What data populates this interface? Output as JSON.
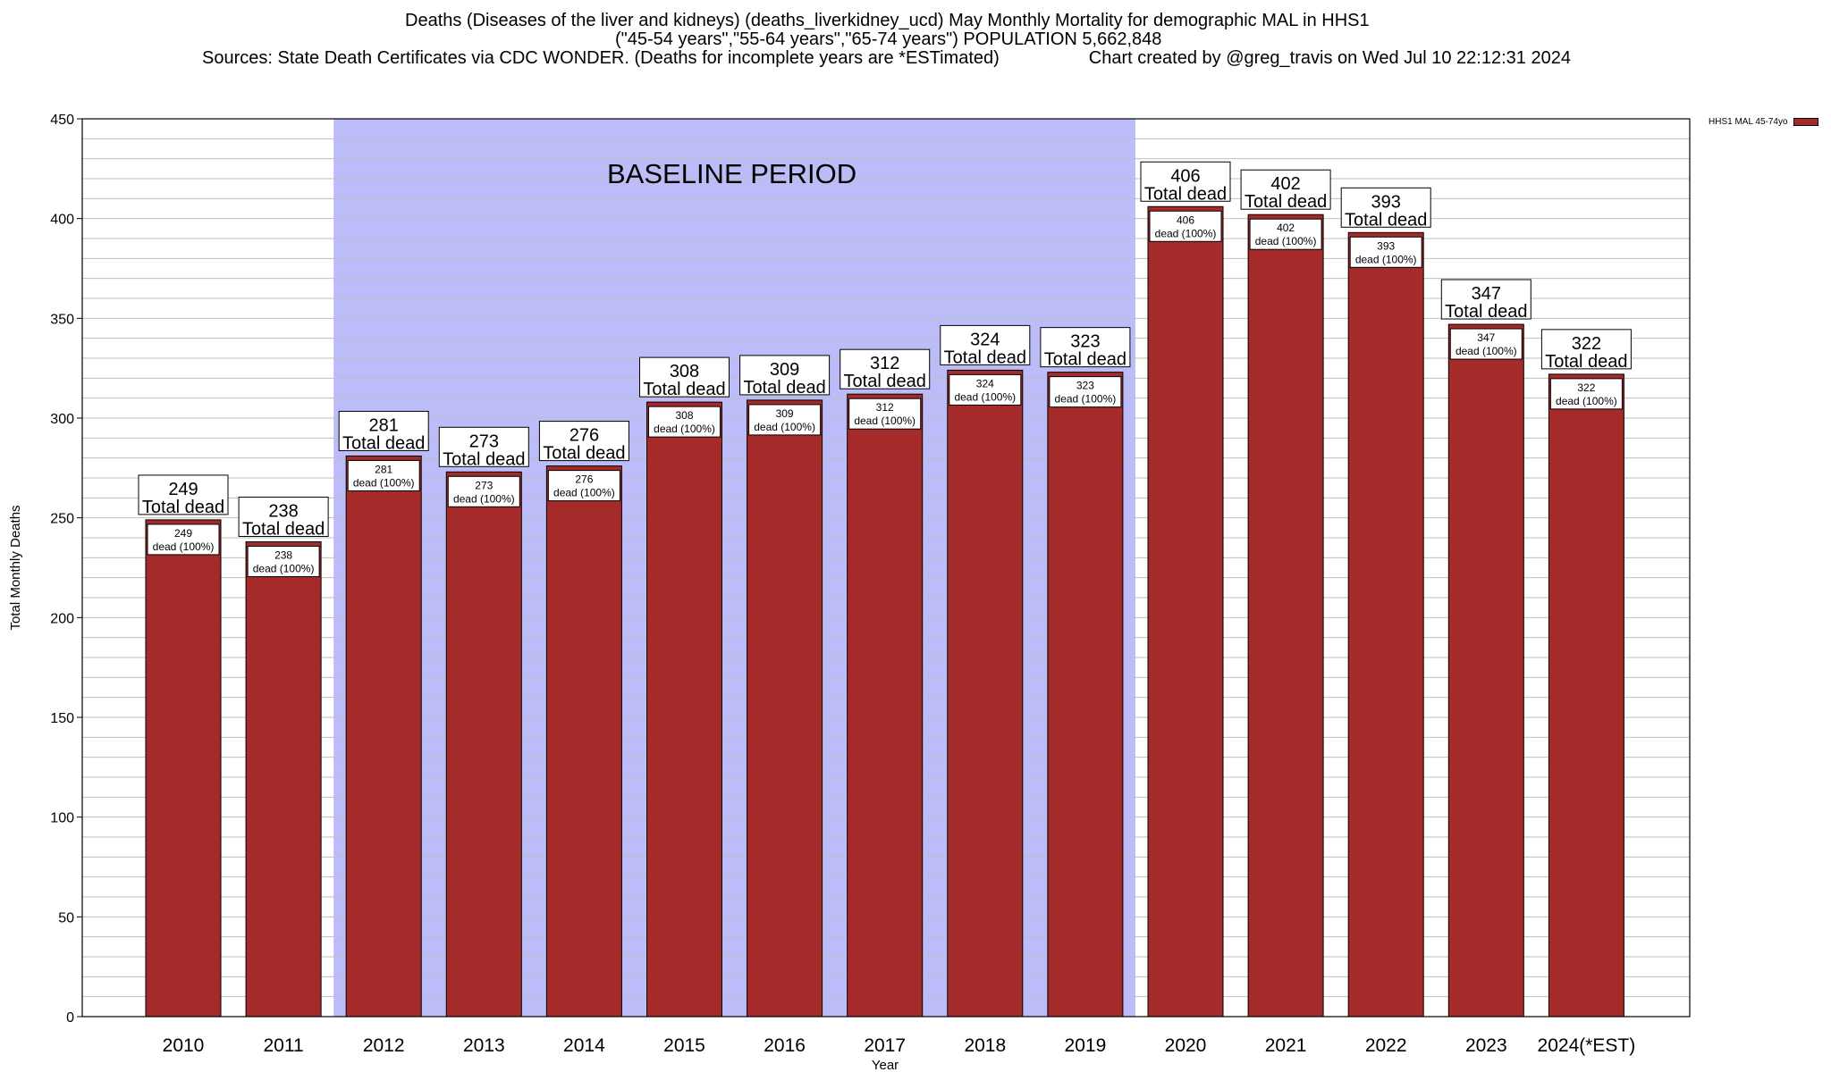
{
  "title": {
    "line1": "Deaths (Diseases of the liver and kidneys) (deaths_liverkidney_ucd) May Monthly Mortality for demographic MAL in HHS1",
    "line2": "(\"45-54 years\",\"55-64 years\",\"65-74 years\") POPULATION 5,662,848",
    "line3": "Sources: State Death Certificates via CDC WONDER. (Deaths for incomplete years are *ESTimated)                  Chart created by @greg_travis on Wed Jul 10 22:12:31 2024"
  },
  "legend": {
    "label": "HHS1 MAL 45-74yo"
  },
  "colors": {
    "bar": "#a52a2a",
    "baseline_band": "#bcbcf9",
    "grid": "#bfbfbf"
  },
  "chart_data": {
    "type": "bar",
    "xlabel": "Year",
    "ylabel": "Total Monthly Deaths",
    "ylim": [
      0,
      450
    ],
    "yticks": [
      0,
      50,
      100,
      150,
      200,
      250,
      300,
      350,
      400,
      450
    ],
    "grid": true,
    "legend_position": "top-right",
    "categories": [
      "2010",
      "2011",
      "2012",
      "2013",
      "2014",
      "2015",
      "2016",
      "2017",
      "2018",
      "2019",
      "2020",
      "2021",
      "2022",
      "2023",
      "2024(*EST)"
    ],
    "series": [
      {
        "name": "HHS1 MAL 45-74yo",
        "values": [
          249,
          238,
          281,
          273,
          276,
          308,
          309,
          312,
          324,
          323,
          406,
          402,
          393,
          347,
          322
        ]
      }
    ],
    "top_label_suffix": "Total dead",
    "inner_label_suffix": "dead (100%)",
    "baseline": {
      "label": "BASELINE PERIOD",
      "from": "2012",
      "to": "2019"
    }
  }
}
